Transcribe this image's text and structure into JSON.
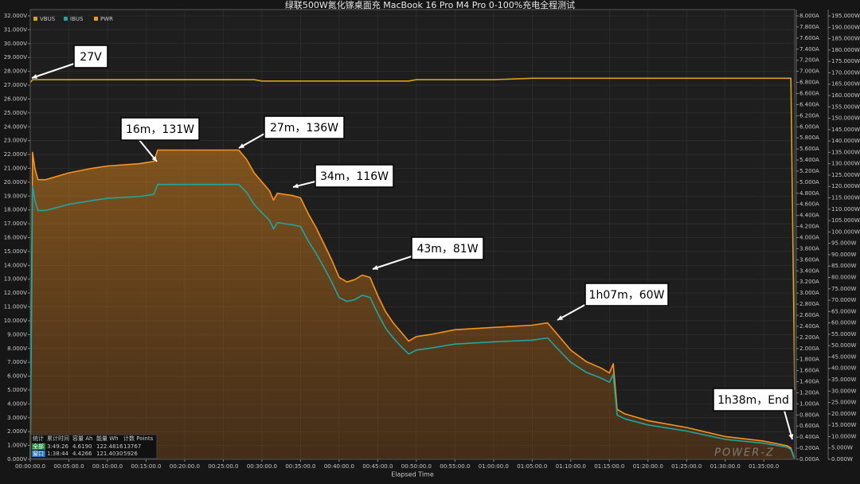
{
  "chart_data": {
    "type": "line",
    "title": "绿联500W氮化镓桌面充 MacBook 16 Pro M4 Pro 0-100%充电全程测试",
    "x_label": "Elapsed Time",
    "x": [
      0,
      0.3,
      0.6,
      1,
      2,
      5,
      8,
      10,
      14,
      16,
      16.5,
      17,
      27,
      28,
      29,
      30,
      31,
      31.5,
      32,
      34,
      35,
      36,
      37,
      38,
      39,
      40,
      41,
      42,
      43,
      44,
      45,
      46,
      47,
      48,
      49,
      50,
      52,
      55,
      60,
      65,
      67,
      68,
      70,
      72,
      74,
      75,
      75.5,
      76,
      77,
      80,
      85,
      90,
      95,
      98,
      98.5,
      99
    ],
    "series": [
      {
        "name": "VBUS",
        "color": "#d9a21b",
        "axis": "y",
        "values": [
          27.2,
          27.4,
          27.4,
          27.4,
          27.4,
          27.4,
          27.4,
          27.4,
          27.4,
          27.4,
          27.4,
          27.4,
          27.4,
          27.4,
          27.4,
          27.3,
          27.3,
          27.3,
          27.3,
          27.3,
          27.3,
          27.3,
          27.3,
          27.3,
          27.3,
          27.3,
          27.3,
          27.3,
          27.3,
          27.3,
          27.3,
          27.3,
          27.3,
          27.3,
          27.3,
          27.4,
          27.4,
          27.4,
          27.4,
          27.5,
          27.5,
          27.5,
          27.5,
          27.5,
          27.5,
          27.5,
          27.5,
          27.5,
          27.5,
          27.5,
          27.5,
          27.5,
          27.5,
          27.5,
          27.5,
          5.0
        ]
      },
      {
        "name": "IBUS",
        "color": "#1fa6a2",
        "axis": "y2",
        "values": [
          0,
          4.93,
          4.67,
          4.49,
          4.49,
          4.6,
          4.67,
          4.71,
          4.74,
          4.78,
          4.96,
          4.96,
          4.96,
          4.82,
          4.6,
          4.45,
          4.31,
          4.16,
          4.27,
          4.23,
          4.2,
          3.94,
          3.72,
          3.47,
          3.21,
          2.92,
          2.85,
          2.88,
          2.96,
          2.92,
          2.63,
          2.37,
          2.19,
          2.04,
          1.9,
          1.97,
          2.01,
          2.08,
          2.12,
          2.15,
          2.19,
          2.04,
          1.75,
          1.57,
          1.46,
          1.39,
          1.53,
          0.8,
          0.73,
          0.62,
          0.51,
          0.36,
          0.29,
          0.22,
          0.18,
          0
        ]
      },
      {
        "name": "PWR",
        "color": "#f7941d",
        "axis": "y3",
        "values": [
          0,
          135,
          128,
          123,
          123,
          126,
          128,
          129,
          130,
          131,
          136,
          136,
          136,
          132,
          126,
          122,
          118,
          114,
          117,
          116,
          115,
          108,
          102,
          95,
          88,
          80,
          78,
          79,
          81,
          80,
          72,
          65,
          60,
          56,
          52,
          54,
          55,
          57,
          58,
          59,
          60,
          56,
          48,
          43,
          40,
          38,
          42,
          22,
          20,
          17,
          14,
          10,
          8,
          6,
          5,
          0
        ]
      }
    ],
    "xlim": [
      0,
      99
    ],
    "xticks": [
      {
        "value": 0,
        "label": "00:00:00.0"
      },
      {
        "value": 5,
        "label": "00:05:00.0"
      },
      {
        "value": 10,
        "label": "00:10:00.0"
      },
      {
        "value": 15,
        "label": "00:15:00.0"
      },
      {
        "value": 20,
        "label": "00:20:00.0"
      },
      {
        "value": 25,
        "label": "00:25:00.0"
      },
      {
        "value": 30,
        "label": "00:30:00.0"
      },
      {
        "value": 35,
        "label": "00:35:00.0"
      },
      {
        "value": 40,
        "label": "00:40:00.0"
      },
      {
        "value": 45,
        "label": "00:45:00.0"
      },
      {
        "value": 50,
        "label": "00:50:00.0"
      },
      {
        "value": 55,
        "label": "00:55:00.0"
      },
      {
        "value": 60,
        "label": "01:00:00.0"
      },
      {
        "value": 65,
        "label": "01:05:00.0"
      },
      {
        "value": 70,
        "label": "01:10:00.0"
      },
      {
        "value": 75,
        "label": "01:15:00.0"
      },
      {
        "value": 80,
        "label": "01:20:00.0"
      },
      {
        "value": 85,
        "label": "01:25:00.0"
      },
      {
        "value": 90,
        "label": "01:30:00.0"
      },
      {
        "value": 95,
        "label": "01:35:00.0"
      }
    ],
    "ylim": [
      0,
      32
    ],
    "yticks": [
      {
        "value": 0,
        "label": "0.000V"
      },
      {
        "value": 1,
        "label": "1.000V"
      },
      {
        "value": 2,
        "label": "2.000V"
      },
      {
        "value": 3,
        "label": "3.000V"
      },
      {
        "value": 4,
        "label": "4.000V"
      },
      {
        "value": 5,
        "label": "5.000V"
      },
      {
        "value": 6,
        "label": "6.000V"
      },
      {
        "value": 7,
        "label": "7.000V"
      },
      {
        "value": 8,
        "label": "8.000V"
      },
      {
        "value": 9,
        "label": "9.000V"
      },
      {
        "value": 10,
        "label": "10.000V"
      },
      {
        "value": 11,
        "label": "11.000V"
      },
      {
        "value": 12,
        "label": "12.000V"
      },
      {
        "value": 13,
        "label": "13.000V"
      },
      {
        "value": 14,
        "label": "14.000V"
      },
      {
        "value": 15,
        "label": "15.000V"
      },
      {
        "value": 16,
        "label": "16.000V"
      },
      {
        "value": 17,
        "label": "17.000V"
      },
      {
        "value": 18,
        "label": "18.000V"
      },
      {
        "value": 19,
        "label": "19.000V"
      },
      {
        "value": 20,
        "label": "20.000V"
      },
      {
        "value": 21,
        "label": "21.000V"
      },
      {
        "value": 22,
        "label": "22.000V"
      },
      {
        "value": 23,
        "label": "23.000V"
      },
      {
        "value": 24,
        "label": "24.000V"
      },
      {
        "value": 25,
        "label": "25.000V"
      },
      {
        "value": 26,
        "label": "26.000V"
      },
      {
        "value": 27,
        "label": "27.000V"
      },
      {
        "value": 28,
        "label": "28.000V"
      },
      {
        "value": 29,
        "label": "29.000V"
      },
      {
        "value": 30,
        "label": "30.000V"
      },
      {
        "value": 31,
        "label": "31.000V"
      },
      {
        "value": 32,
        "label": "32.000V"
      }
    ],
    "y2lim": [
      0,
      8
    ],
    "y2ticks": [
      {
        "value": 0,
        "label": "0.000A"
      },
      {
        "value": 0.2,
        "label": "0.200A"
      },
      {
        "value": 0.4,
        "label": "0.400A"
      },
      {
        "value": 0.6,
        "label": "0.600A"
      },
      {
        "value": 0.8,
        "label": "0.800A"
      },
      {
        "value": 1,
        "label": "1.000A"
      },
      {
        "value": 1.2,
        "label": "1.200A"
      },
      {
        "value": 1.4,
        "label": "1.400A"
      },
      {
        "value": 1.6,
        "label": "1.600A"
      },
      {
        "value": 1.8,
        "label": "1.800A"
      },
      {
        "value": 2,
        "label": "2.000A"
      },
      {
        "value": 2.2,
        "label": "2.200A"
      },
      {
        "value": 2.4,
        "label": "2.400A"
      },
      {
        "value": 2.6,
        "label": "2.600A"
      },
      {
        "value": 2.8,
        "label": "2.800A"
      },
      {
        "value": 3,
        "label": "3.000A"
      },
      {
        "value": 3.2,
        "label": "3.200A"
      },
      {
        "value": 3.4,
        "label": "3.400A"
      },
      {
        "value": 3.6,
        "label": "3.600A"
      },
      {
        "value": 3.8,
        "label": "3.800A"
      },
      {
        "value": 4,
        "label": "4.000A"
      },
      {
        "value": 4.2,
        "label": "4.200A"
      },
      {
        "value": 4.4,
        "label": "4.400A"
      },
      {
        "value": 4.6,
        "label": "4.600A"
      },
      {
        "value": 4.8,
        "label": "4.800A"
      },
      {
        "value": 5,
        "label": "5.000A"
      },
      {
        "value": 5.2,
        "label": "5.200A"
      },
      {
        "value": 5.4,
        "label": "5.400A"
      },
      {
        "value": 5.6,
        "label": "5.600A"
      },
      {
        "value": 5.8,
        "label": "5.800A"
      },
      {
        "value": 6,
        "label": "6.000A"
      },
      {
        "value": 6.2,
        "label": "6.200A"
      },
      {
        "value": 6.4,
        "label": "6.400A"
      },
      {
        "value": 6.6,
        "label": "6.600A"
      },
      {
        "value": 6.8,
        "label": "6.800A"
      },
      {
        "value": 7,
        "label": "7.000A"
      },
      {
        "value": 7.2,
        "label": "7.200A"
      },
      {
        "value": 7.4,
        "label": "7.400A"
      },
      {
        "value": 7.6,
        "label": "7.600A"
      },
      {
        "value": 7.8,
        "label": "7.800A"
      },
      {
        "value": 8,
        "label": "8.000A"
      }
    ],
    "y3lim": [
      0,
      195
    ],
    "y3ticks": [
      {
        "value": 0,
        "label": "0.000W"
      },
      {
        "value": 5,
        "label": "5.000W"
      },
      {
        "value": 10,
        "label": "10.000W"
      },
      {
        "value": 15,
        "label": "15.000W"
      },
      {
        "value": 20,
        "label": "20.000W"
      },
      {
        "value": 25,
        "label": "25.000W"
      },
      {
        "value": 30,
        "label": "30.000W"
      },
      {
        "value": 35,
        "label": "35.000W"
      },
      {
        "value": 40,
        "label": "40.000W"
      },
      {
        "value": 45,
        "label": "45.000W"
      },
      {
        "value": 50,
        "label": "50.000W"
      },
      {
        "value": 55,
        "label": "55.000W"
      },
      {
        "value": 60,
        "label": "60.000W"
      },
      {
        "value": 65,
        "label": "65.000W"
      },
      {
        "value": 70,
        "label": "70.000W"
      },
      {
        "value": 75,
        "label": "75.000W"
      },
      {
        "value": 80,
        "label": "80.000W"
      },
      {
        "value": 85,
        "label": "85.000W"
      },
      {
        "value": 90,
        "label": "90.000W"
      },
      {
        "value": 95,
        "label": "95.000W"
      },
      {
        "value": 100,
        "label": "100.000W"
      },
      {
        "value": 105,
        "label": "105.000W"
      },
      {
        "value": 110,
        "label": "110.000W"
      },
      {
        "value": 115,
        "label": "115.000W"
      },
      {
        "value": 120,
        "label": "120.000W"
      },
      {
        "value": 125,
        "label": "125.000W"
      },
      {
        "value": 130,
        "label": "130.000W"
      },
      {
        "value": 135,
        "label": "135.000W"
      },
      {
        "value": 140,
        "label": "140.000W"
      },
      {
        "value": 145,
        "label": "145.000W"
      },
      {
        "value": 150,
        "label": "150.000W"
      },
      {
        "value": 155,
        "label": "155.000W"
      },
      {
        "value": 160,
        "label": "160.000W"
      },
      {
        "value": 165,
        "label": "165.000W"
      },
      {
        "value": 170,
        "label": "170.000W"
      },
      {
        "value": 175,
        "label": "175.000W"
      },
      {
        "value": 180,
        "label": "180.000W"
      },
      {
        "value": 185,
        "label": "185.000W"
      },
      {
        "value": 190,
        "label": "190.000W"
      },
      {
        "value": 195,
        "label": "195.000W"
      }
    ],
    "grid": true,
    "legend": "top-left",
    "annotations": [
      "27V",
      "16m，131W",
      "27m，136W",
      "34m，116W",
      "43m，81W",
      "1h07m，60W",
      "1h38m，End"
    ]
  },
  "stats_table": {
    "header": [
      "统计",
      "累计时间",
      "容量 Ah",
      "能量 Wh",
      "计数 Points"
    ],
    "rows": [
      [
        "全部",
        "3:49:26",
        "4.6190",
        "122.4816",
        "13767"
      ],
      [
        "窗口",
        "1:38:44",
        "4.4266",
        "121.4030",
        "5926"
      ]
    ]
  },
  "watermark": "POWER-Z"
}
